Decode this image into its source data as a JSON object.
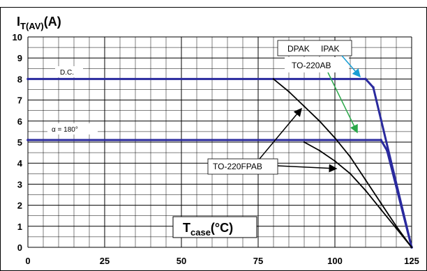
{
  "chart_data": {
    "type": "line",
    "title": "",
    "xlabel_main": "T",
    "xlabel_sub": "case",
    "xlabel_unit": "(°C)",
    "ylabel_main": "I",
    "ylabel_sub": "T(AV)",
    "ylabel_unit": "(A)",
    "xlim": [
      0,
      125
    ],
    "ylim": [
      0,
      10
    ],
    "x_ticks": [
      0,
      25,
      50,
      75,
      100,
      125
    ],
    "y_ticks": [
      0,
      1,
      2,
      3,
      4,
      5,
      6,
      7,
      8,
      9,
      10
    ],
    "grid": true,
    "series": [
      {
        "name": "DPAK IPAK / TO-220AB (D.C.)",
        "color": "#2a2a9e",
        "x": [
          0,
          110,
          112.5,
          125
        ],
        "y": [
          8,
          8,
          7.6,
          0
        ]
      },
      {
        "name": "DPAK IPAK / TO-220AB (α = 180°)",
        "color": "#2a2a9e",
        "x": [
          0,
          115,
          117,
          125
        ],
        "y": [
          5.1,
          5.1,
          4.6,
          0
        ]
      },
      {
        "name": "TO-220FPAB (D.C.)",
        "color": "#000000",
        "x": [
          80,
          85,
          90,
          95,
          100,
          105,
          110,
          115,
          120,
          125
        ],
        "y": [
          8,
          7.4,
          6.7,
          6.0,
          5.2,
          4.3,
          3.2,
          2.1,
          1.0,
          0
        ]
      },
      {
        "name": "TO-220FPAB (α = 180°)",
        "color": "#000000",
        "x": [
          90,
          95,
          100,
          105,
          110,
          115,
          120,
          125
        ],
        "y": [
          5.0,
          4.6,
          4.1,
          3.5,
          2.7,
          1.8,
          0.9,
          0
        ]
      }
    ],
    "annotations": {
      "dc": "D.C.",
      "alpha": "α = 180°",
      "dpak": "DPAK",
      "ipak": "IPAK",
      "to220ab": "TO-220AB",
      "to220fpab": "TO-220FPAB"
    }
  }
}
